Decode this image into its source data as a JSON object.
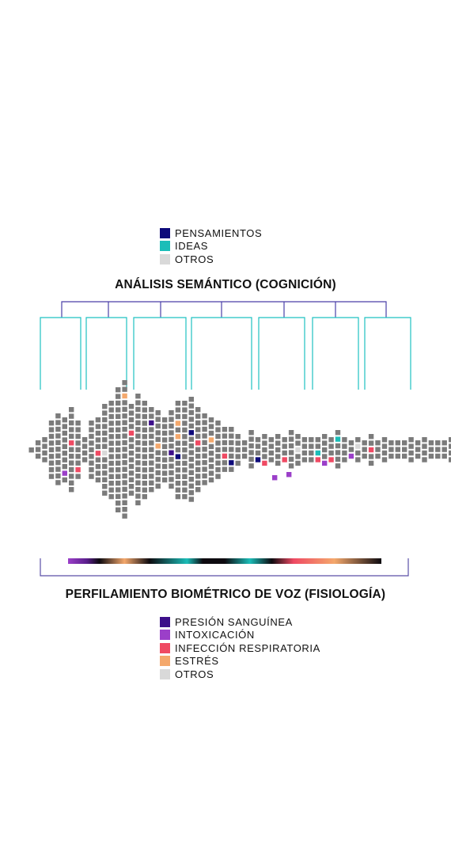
{
  "semantic": {
    "title": "ANÁLISIS SEMÁNTICO (COGNICIÓN)",
    "legend": [
      {
        "label": "PENSAMIENTOS",
        "color": "#0d0a7a"
      },
      {
        "label": "IDEAS",
        "color": "#1bbdb8"
      },
      {
        "label": "OTROS",
        "color": "#d9d9d9"
      }
    ],
    "tree_color_top": "#4a3fa8",
    "tree_color_branches": "#1fc2c2"
  },
  "biometric": {
    "title": "PERFILAMIENTO BIOMÉTRICO DE VOZ (FISIOLOGÍA)",
    "legend": [
      {
        "label": "PRESIÓN SANGUÍNEA",
        "color": "#3d0f8a"
      },
      {
        "label": "INTOXICACIÓN",
        "color": "#9b3fc9"
      },
      {
        "label": "INFECCIÓN RESPIRATORIA",
        "color": "#ef4a63"
      },
      {
        "label": "ESTRÉS",
        "color": "#f4a86c"
      },
      {
        "label": "OTROS",
        "color": "#d9d9d9"
      }
    ],
    "bracket_color": "#5a4fa8"
  },
  "grid": {
    "default_color": "#7b7b7b",
    "column_heights": [
      1,
      3,
      4,
      9,
      11,
      10,
      13,
      9,
      4,
      9,
      10,
      14,
      15,
      19,
      21,
      14,
      17,
      15,
      13,
      12,
      10,
      12,
      15,
      15,
      16,
      13,
      11,
      10,
      9,
      7,
      7,
      5,
      3,
      6,
      4,
      5,
      4,
      5,
      4,
      6,
      5,
      4,
      4,
      4,
      5,
      4,
      6,
      4,
      3,
      4,
      3,
      5,
      3,
      4,
      3,
      3,
      3,
      4,
      3,
      4,
      3,
      3,
      3,
      4,
      3,
      3,
      3,
      3,
      3,
      1
    ],
    "highlights": [
      {
        "col": 2,
        "row": 5,
        "cat": "infeccion"
      },
      {
        "col": 5,
        "row": 8,
        "cat": "intoxicacion"
      },
      {
        "col": 6,
        "row": 5,
        "cat": "infeccion"
      },
      {
        "col": 7,
        "row": 7,
        "cat": "infeccion"
      },
      {
        "col": 10,
        "row": 5,
        "cat": "infeccion"
      },
      {
        "col": 11,
        "row": 7,
        "cat": "otros"
      },
      {
        "col": 14,
        "row": 2,
        "cat": "estres"
      },
      {
        "col": 15,
        "row": 4,
        "cat": "infeccion"
      },
      {
        "col": 18,
        "row": 2,
        "cat": "presion"
      },
      {
        "col": 19,
        "row": 5,
        "cat": "estres"
      },
      {
        "col": 21,
        "row": 6,
        "cat": "presion"
      },
      {
        "col": 22,
        "row": 3,
        "cat": "estres"
      },
      {
        "col": 22,
        "row": 5,
        "cat": "estres"
      },
      {
        "col": 22,
        "row": 8,
        "cat": "pensamientos"
      },
      {
        "col": 24,
        "row": 5,
        "cat": "pensamientos"
      },
      {
        "col": 25,
        "row": 5,
        "cat": "infeccion"
      },
      {
        "col": 27,
        "row": 3,
        "cat": "estres"
      },
      {
        "col": 29,
        "row": 4,
        "cat": "infeccion"
      },
      {
        "col": 30,
        "row": 5,
        "cat": "pensamientos"
      },
      {
        "col": 34,
        "row": 3,
        "cat": "pensamientos"
      },
      {
        "col": 35,
        "row": 4,
        "cat": "infeccion"
      },
      {
        "col": 36,
        "row": 7,
        "cat": "intoxicacion"
      },
      {
        "col": 38,
        "row": 3,
        "cat": "infeccion"
      },
      {
        "col": 38,
        "row": 4,
        "cat": "intoxicacion"
      },
      {
        "col": 38,
        "row": 6,
        "cat": "intoxicacion"
      },
      {
        "col": 40,
        "row": 2,
        "cat": "otros"
      },
      {
        "col": 43,
        "row": 2,
        "cat": "ideas"
      },
      {
        "col": 43,
        "row": 3,
        "cat": "infeccion"
      },
      {
        "col": 44,
        "row": 4,
        "cat": "intoxicacion"
      },
      {
        "col": 45,
        "row": 3,
        "cat": "infeccion"
      },
      {
        "col": 46,
        "row": 1,
        "cat": "ideas"
      },
      {
        "col": 48,
        "row": 2,
        "cat": "intoxicacion"
      },
      {
        "col": 49,
        "row": 1,
        "cat": "otros"
      },
      {
        "col": 50,
        "row": 3,
        "cat": "infeccion"
      },
      {
        "col": 51,
        "row": 2,
        "cat": "infeccion"
      }
    ],
    "category_colors": {
      "pensamientos": "#0d0a7a",
      "ideas": "#1bbdb8",
      "otros": "#d9d9d9",
      "presion": "#3d0f8a",
      "intoxicacion": "#9b3fc9",
      "infeccion": "#ef4a63",
      "estres": "#f4a86c"
    }
  },
  "gradient_bar": {
    "stops": [
      {
        "offset": 0.0,
        "color": "#9b3fc9"
      },
      {
        "offset": 0.06,
        "color": "#5a1e8c"
      },
      {
        "offset": 0.1,
        "color": "#0d0a0f"
      },
      {
        "offset": 0.18,
        "color": "#f4a86c"
      },
      {
        "offset": 0.26,
        "color": "#0d0a0f"
      },
      {
        "offset": 0.38,
        "color": "#1bbdb8"
      },
      {
        "offset": 0.43,
        "color": "#0d0a0f"
      },
      {
        "offset": 0.5,
        "color": "#0d0a0f"
      },
      {
        "offset": 0.58,
        "color": "#1bbdb8"
      },
      {
        "offset": 0.65,
        "color": "#0d0a0f"
      },
      {
        "offset": 0.72,
        "color": "#ef4a63"
      },
      {
        "offset": 0.85,
        "color": "#f4a86c"
      },
      {
        "offset": 1.0,
        "color": "#0d0a0f"
      }
    ]
  }
}
